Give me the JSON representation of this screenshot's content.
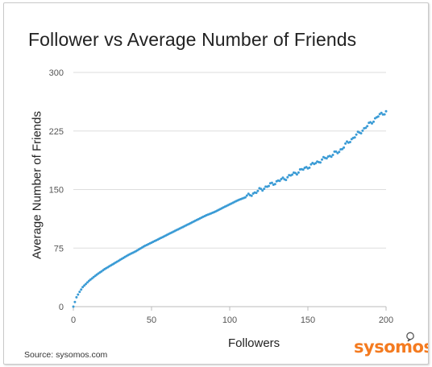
{
  "chart_data": {
    "type": "scatter",
    "title": "Follower vs Average Number of Friends",
    "xlabel": "Followers",
    "ylabel": "Average Number of Friends",
    "xlim": [
      0,
      200
    ],
    "ylim": [
      0,
      300
    ],
    "xticks": [
      "0",
      "50",
      "100",
      "150",
      "200"
    ],
    "yticks": [
      "0",
      "75",
      "150",
      "225",
      "300"
    ],
    "x_tick_values": [
      0,
      50,
      100,
      150,
      200
    ],
    "y_tick_values": [
      0,
      75,
      150,
      225,
      300
    ],
    "grid": "horizontal",
    "legend": "none",
    "series_color": "#3a9bd5",
    "x": [
      0,
      2,
      4,
      6,
      8,
      10,
      15,
      20,
      25,
      30,
      35,
      40,
      45,
      50,
      55,
      60,
      65,
      70,
      75,
      80,
      85,
      90,
      95,
      100,
      105,
      110,
      115,
      120,
      125,
      130,
      135,
      140,
      145,
      150,
      155,
      160,
      165,
      170,
      175,
      180,
      185,
      190,
      195,
      200
    ],
    "y": [
      0,
      12,
      19,
      25,
      29,
      33,
      41,
      48,
      54,
      60,
      66,
      71,
      77,
      82,
      87,
      92,
      97,
      102,
      107,
      112,
      117,
      121,
      126,
      131,
      136,
      140,
      145,
      150,
      155,
      160,
      164,
      169,
      174,
      179,
      184,
      189,
      194,
      199,
      209,
      218,
      226,
      235,
      244,
      250
    ]
  },
  "source_text": "Source: sysomos.com",
  "logo_text": "sysomos",
  "colors": {
    "series": "#3a9bd5",
    "gridline": "#dddddd",
    "logo": "#f47b20"
  }
}
